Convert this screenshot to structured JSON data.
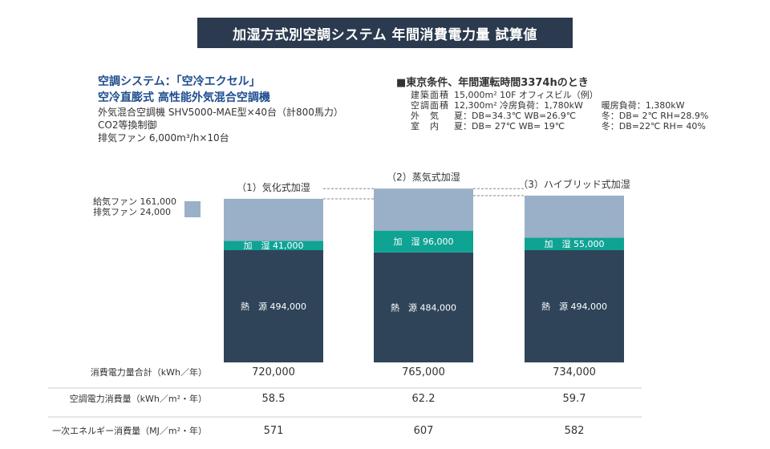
{
  "title": "加湿方式別空調システム 年間消費電力量 試算値",
  "system": {
    "heading_line1": "空調システム：「空冷エクセル」",
    "heading_line2": "空冷直膨式 高性能外気混合空調機",
    "spec_lines": [
      "外気混合空調機 SHV5000-MAE型×40台（計800馬力）",
      "CO2等換制御",
      "排気ファン 6,000m³/h×10台"
    ]
  },
  "conditions": {
    "heading": "■東京条件、年間運転時間3374hのとき",
    "rows": [
      [
        "建築面積",
        "15,000m² 10F オフィスビル（例）",
        ""
      ],
      [
        "空調面積",
        "12,300m² 冷房負荷：1,780kW",
        "暖房負荷：1,380kW"
      ],
      [
        "外　気",
        "夏：DB=34.3℃ WB=26.9℃",
        "冬：DB= 2℃ RH=28.9%"
      ],
      [
        "室　内",
        "夏：DB= 27℃ WB= 19℃",
        "冬：DB=22℃ RH= 40%"
      ]
    ]
  },
  "legend": {
    "label_line1": "給気ファン 161,000",
    "label_line2": "排気ファン 24,000",
    "color": "#9ab0c8"
  },
  "colors": {
    "fan": "#9ab0c8",
    "humid": "#0fa394",
    "heat": "#2f4459",
    "title_band": "#2b3a4e",
    "heading_blue": "#1e4d8f"
  },
  "chart_data": {
    "type": "bar",
    "stacked": true,
    "categories": [
      "（1）気化式加湿",
      "（2）蒸気式加湿",
      "（3）ハイブリッド式加湿"
    ],
    "series": [
      {
        "key": "heat",
        "values": [
          494000,
          484000,
          494000
        ],
        "labels": [
          "熱　源 494,000",
          "熱　源 484,000",
          "熱　源 494,000"
        ]
      },
      {
        "key": "humid",
        "values": [
          41000,
          96000,
          55000
        ],
        "labels": [
          "加　湿 41,000",
          "加　湿 96,000",
          "加　湿 55,000"
        ]
      },
      {
        "key": "fan",
        "values": [
          185000,
          185000,
          185000
        ],
        "labels": [
          "",
          "",
          ""
        ]
      }
    ],
    "totals": [
      720000,
      765000,
      734000
    ]
  },
  "table": {
    "rows": [
      {
        "label": "消費電力量合計（kWh／年）",
        "values": [
          "720,000",
          "765,000",
          "734,000"
        ]
      },
      {
        "label": "空調電力消費量（kWh／m²・年）",
        "values": [
          "58.5",
          "62.2",
          "59.7"
        ]
      },
      {
        "label": "一次エネルギー消費量（MJ／m²・年）",
        "values": [
          "571",
          "607",
          "582"
        ]
      }
    ]
  }
}
